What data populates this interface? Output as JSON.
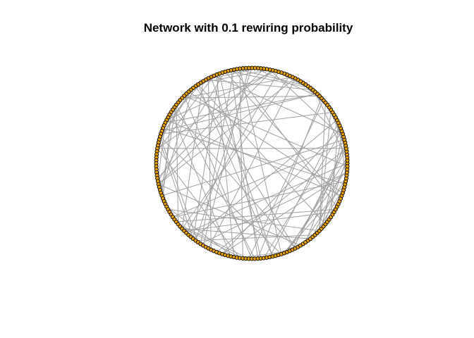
{
  "title": "Network with 0.1 rewiring probability",
  "network": {
    "layout": "circle",
    "node_count": 200,
    "rewiring_probability": 0.1,
    "colors": {
      "node_fill": "#E69F00",
      "node_stroke": "#000000",
      "edge": "#A0A0A0",
      "background": "#FFFFFF"
    }
  }
}
